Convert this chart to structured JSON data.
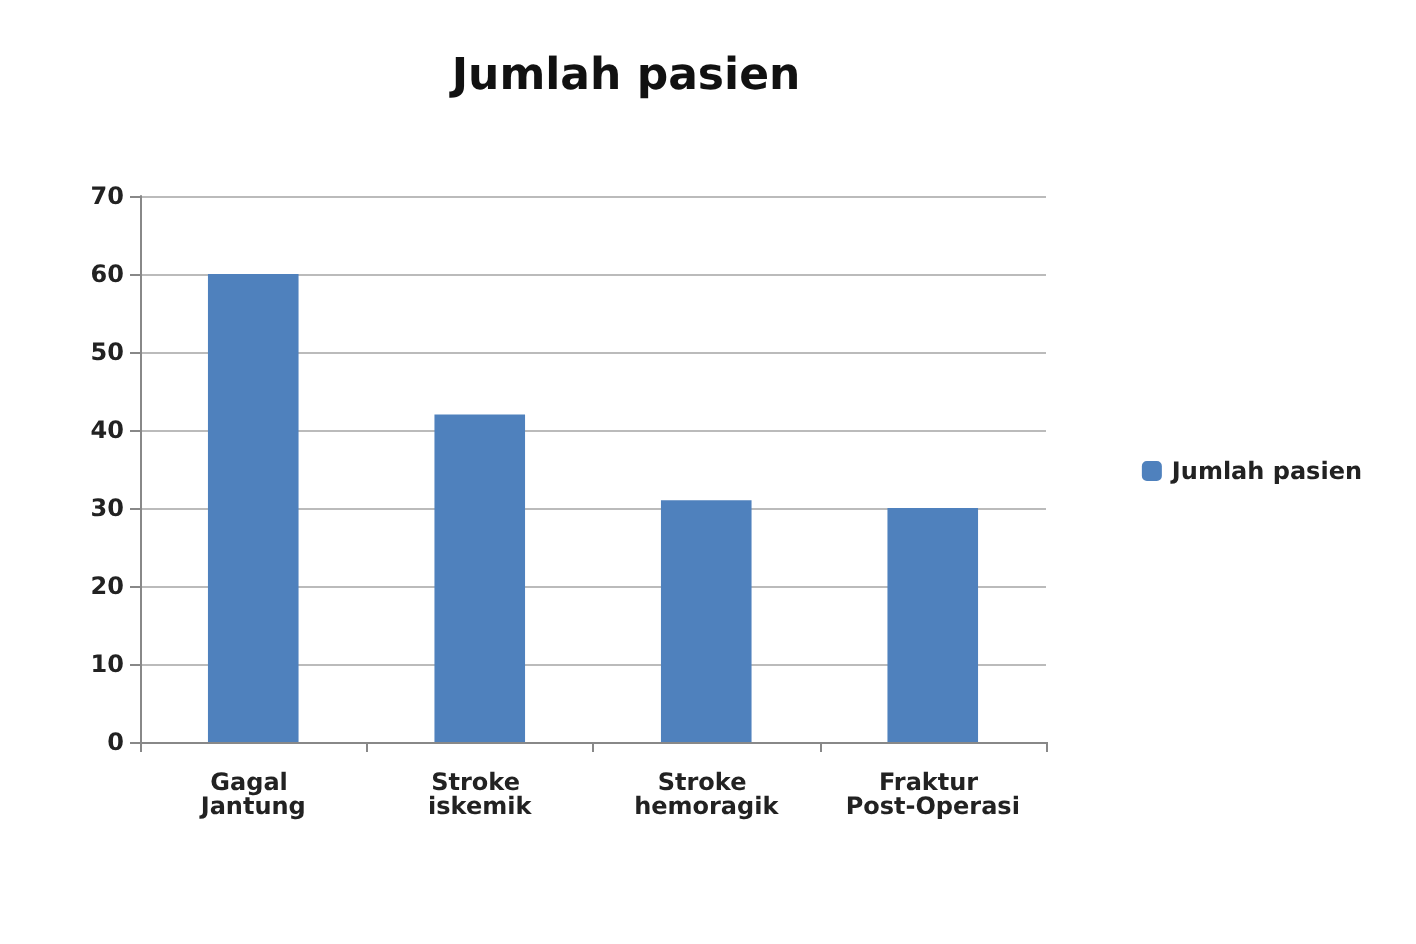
{
  "chart_data": {
    "type": "bar",
    "title": "Jumlah pasien",
    "categories": [
      "Gagal Jantung",
      "Stroke iskemik",
      "Stroke hemoragik",
      "Fraktur Post-Operasi"
    ],
    "series": [
      {
        "name": "Jumlah pasien",
        "color": "#4f81bd",
        "values": [
          60,
          42,
          31,
          30
        ]
      }
    ],
    "ylim": [
      0,
      70
    ],
    "yticks": [
      0,
      10,
      20,
      30,
      40,
      50,
      60,
      70
    ],
    "grid": "y",
    "legend": "right"
  }
}
